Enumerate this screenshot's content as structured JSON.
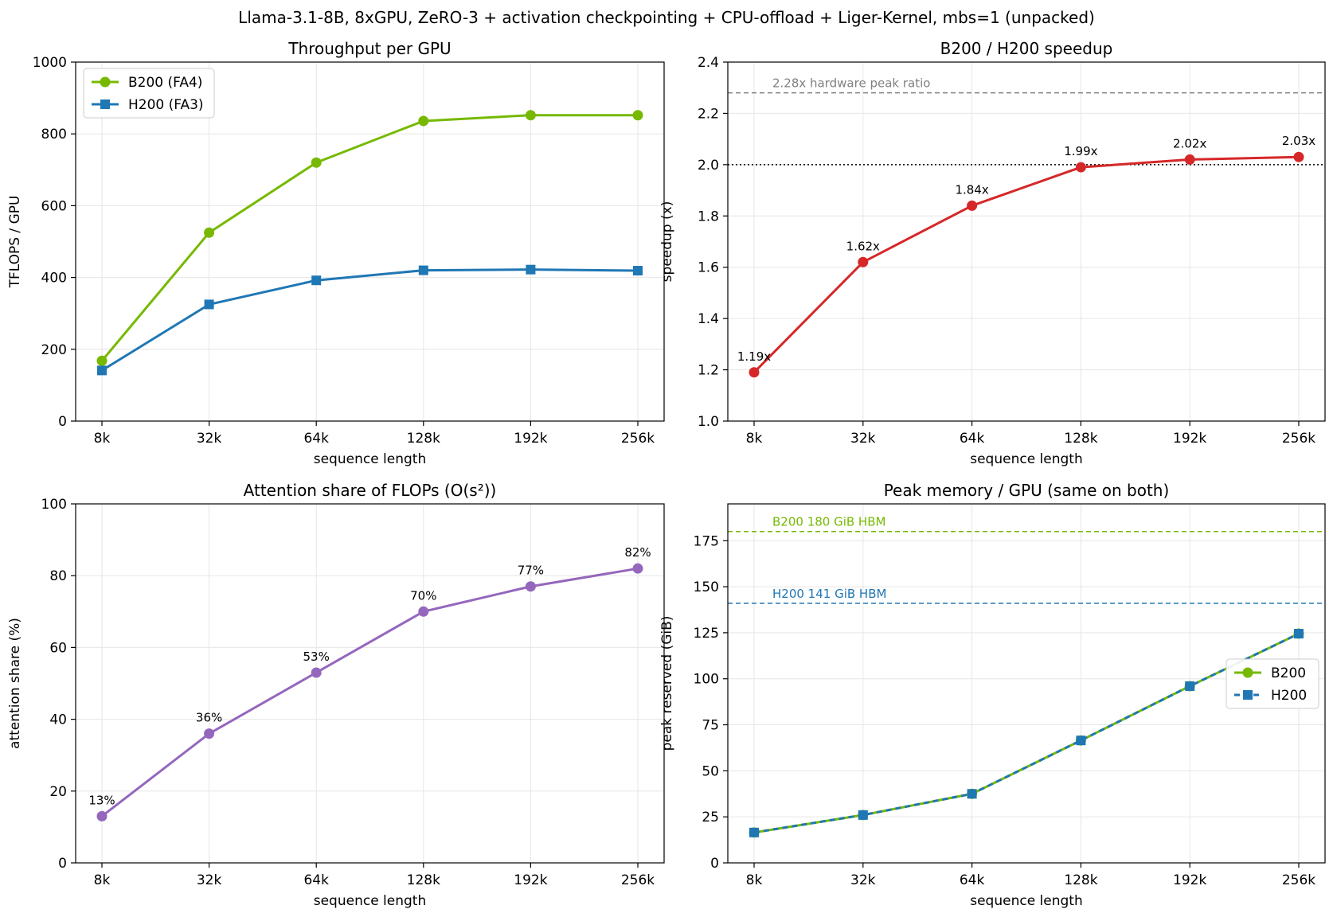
{
  "figure_title": "Llama-3.1-8B, 8xGPU, ZeRO-3 + activation checkpointing + CPU-offload + Liger-Kernel, mbs=1 (unpacked)",
  "colors": {
    "b200": "#76b900",
    "h200": "#1f77b4",
    "speedup": "#d62728",
    "attention": "#9467bd",
    "grid": "#e6e6e6",
    "ref_gray": "#808080"
  },
  "chart_data": [
    {
      "id": "throughput",
      "type": "line",
      "title": "Throughput per GPU",
      "xlabel": "sequence length",
      "ylabel": "TFLOPS / GPU",
      "categories": [
        "8k",
        "32k",
        "64k",
        "128k",
        "192k",
        "256k"
      ],
      "ylim": [
        0,
        1000
      ],
      "yticks": [
        0,
        200,
        400,
        600,
        800,
        1000
      ],
      "grid": true,
      "legend": "top-left",
      "series": [
        {
          "name": "B200 (FA4)",
          "values": [
            168,
            525,
            720,
            836,
            852,
            852
          ],
          "color": "#76b900",
          "marker": "circle"
        },
        {
          "name": "H200 (FA3)",
          "values": [
            141,
            325,
            392,
            420,
            422,
            419
          ],
          "color": "#1f77b4",
          "marker": "square"
        }
      ]
    },
    {
      "id": "speedup",
      "type": "line",
      "title": "B200 / H200 speedup",
      "xlabel": "sequence length",
      "ylabel": "speedup (x)",
      "categories": [
        "8k",
        "32k",
        "64k",
        "128k",
        "192k",
        "256k"
      ],
      "ylim": [
        1.0,
        2.4
      ],
      "yticks": [
        1.0,
        1.2,
        1.4,
        1.6,
        1.8,
        2.0,
        2.2,
        2.4
      ],
      "grid": true,
      "series": [
        {
          "values": [
            1.19,
            1.62,
            1.84,
            1.99,
            2.02,
            2.03
          ],
          "color": "#d62728",
          "marker": "circle",
          "labels": [
            "1.19x",
            "1.62x",
            "1.84x",
            "1.99x",
            "2.02x",
            "2.03x"
          ]
        }
      ],
      "reference_lines": [
        {
          "y": 2.28,
          "label": "2.28x hardware peak ratio",
          "style": "dashed",
          "color": "#808080"
        },
        {
          "y": 2.0,
          "label": "",
          "style": "dotted",
          "color": "#000000"
        }
      ]
    },
    {
      "id": "attention",
      "type": "line",
      "title": "Attention share of FLOPs (O(s²))",
      "xlabel": "sequence length",
      "ylabel": "attention share (%)",
      "categories": [
        "8k",
        "32k",
        "64k",
        "128k",
        "192k",
        "256k"
      ],
      "ylim": [
        0,
        100
      ],
      "yticks": [
        0,
        20,
        40,
        60,
        80,
        100
      ],
      "grid": true,
      "series": [
        {
          "values": [
            13,
            36,
            53,
            70,
            77,
            82
          ],
          "color": "#9467bd",
          "marker": "circle",
          "labels": [
            "13%",
            "36%",
            "53%",
            "70%",
            "77%",
            "82%"
          ]
        }
      ]
    },
    {
      "id": "memory",
      "type": "line",
      "title": "Peak memory / GPU (same on both)",
      "xlabel": "sequence length",
      "ylabel": "peak reserved (GiB)",
      "categories": [
        "8k",
        "32k",
        "64k",
        "128k",
        "192k",
        "256k"
      ],
      "ylim": [
        0,
        195
      ],
      "yticks": [
        0,
        25,
        50,
        75,
        100,
        125,
        150,
        175
      ],
      "grid": true,
      "legend": "center-right",
      "series": [
        {
          "name": "B200",
          "values": [
            16.5,
            26,
            37.5,
            66.5,
            96,
            124.5
          ],
          "color": "#76b900",
          "marker": "circle",
          "style": "solid"
        },
        {
          "name": "H200",
          "values": [
            16.5,
            26,
            37.5,
            66.5,
            96,
            124.5
          ],
          "color": "#1f77b4",
          "marker": "square",
          "style": "dashed"
        }
      ],
      "reference_lines": [
        {
          "y": 180,
          "label": "B200 180 GiB HBM",
          "style": "dashed",
          "color": "#76b900"
        },
        {
          "y": 141,
          "label": "H200 141 GiB HBM",
          "style": "dashed",
          "color": "#1f77b4"
        }
      ]
    }
  ]
}
